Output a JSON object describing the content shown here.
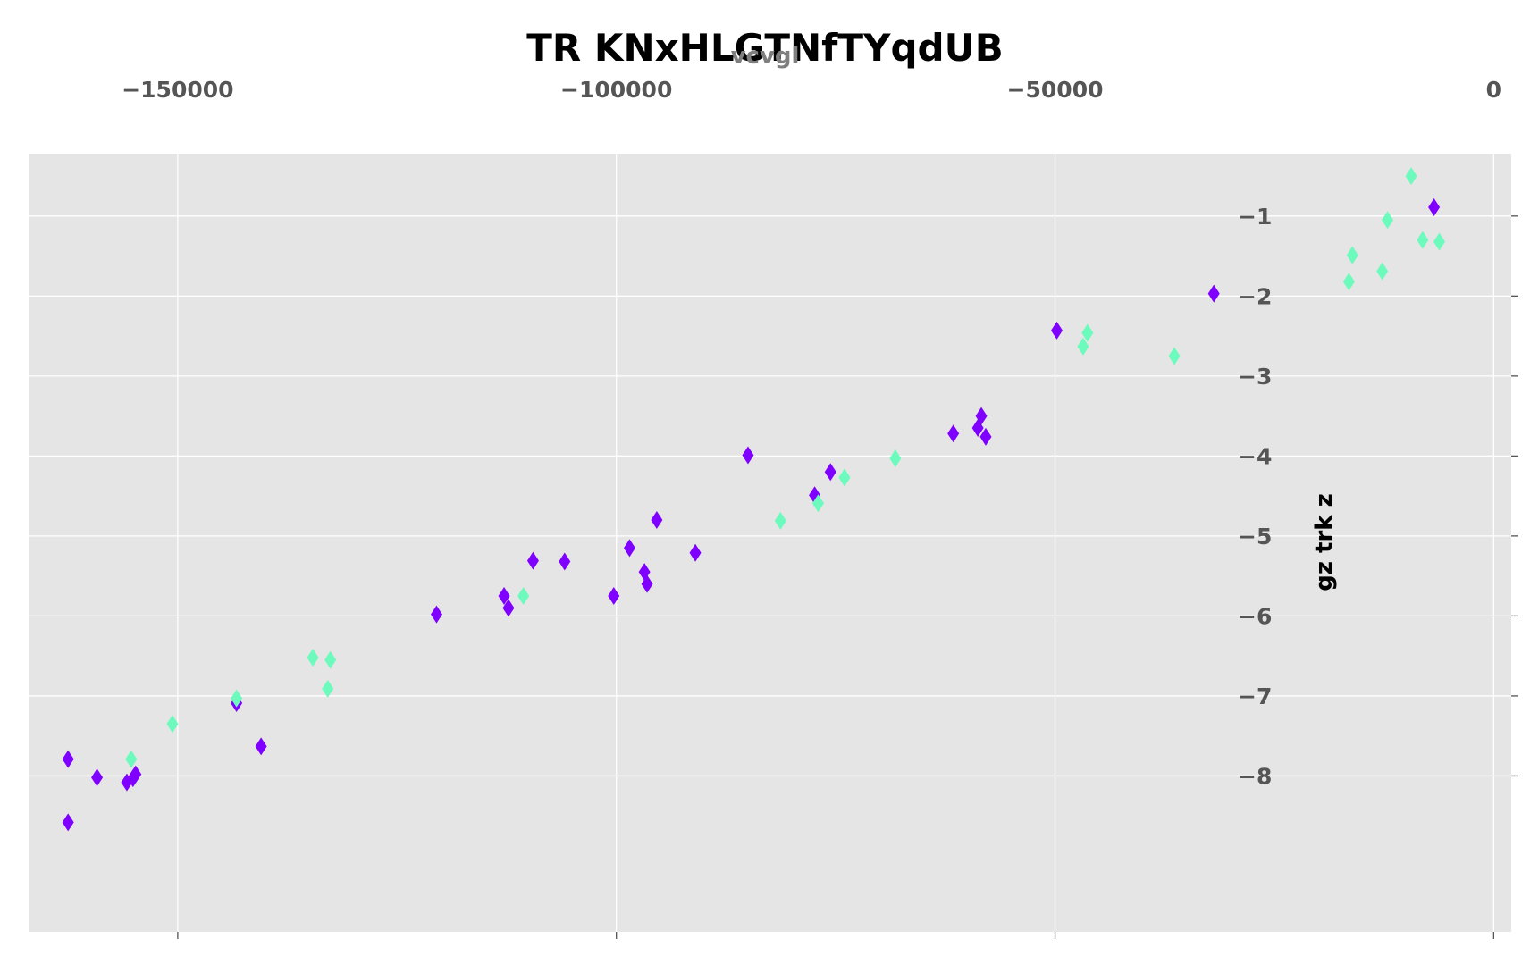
{
  "chart_data": {
    "type": "scatter",
    "title": "TR KNxHLGTNfTYqdUB",
    "xlabel": "vcvgl",
    "ylabel": "gz trk z",
    "xlim": [
      -167000,
      2000
    ],
    "ylim": [
      -9.95,
      -0.22
    ],
    "x_ticks": [
      -150000,
      -100000,
      -50000,
      0
    ],
    "x_tick_labels": [
      "−150000",
      "−100000",
      "−50000",
      "0"
    ],
    "y_ticks": [
      -1,
      -2,
      -3,
      -4,
      -5,
      -6,
      -7,
      -8
    ],
    "y_tick_labels": [
      "−1",
      "−2",
      "−3",
      "−4",
      "−5",
      "−6",
      "−7",
      "−8"
    ],
    "x_axis_position": "top",
    "y_axis_position": "right",
    "grid": true,
    "legend": null,
    "marker": "diamond",
    "background_color": "#e5e5e5",
    "grid_color": "#ffffff",
    "series": [
      {
        "color": "#7f00ff",
        "points": [
          [
            -162500,
            -7.79
          ],
          [
            -162500,
            -8.58
          ],
          [
            -159200,
            -8.02
          ],
          [
            -155800,
            -8.08
          ],
          [
            -155100,
            -8.03
          ],
          [
            -154800,
            -7.98
          ],
          [
            -143300,
            -7.09
          ],
          [
            -140500,
            -7.63
          ],
          [
            -120500,
            -5.98
          ],
          [
            -112800,
            -5.75
          ],
          [
            -112300,
            -5.9
          ],
          [
            -109500,
            -5.31
          ],
          [
            -105900,
            -5.32
          ],
          [
            -100300,
            -5.75
          ],
          [
            -98500,
            -5.15
          ],
          [
            -96800,
            -5.45
          ],
          [
            -96500,
            -5.6
          ],
          [
            -95400,
            -4.8
          ],
          [
            -91000,
            -5.21
          ],
          [
            -85000,
            -3.99
          ],
          [
            -77400,
            -4.49
          ],
          [
            -75600,
            -4.2
          ],
          [
            -61600,
            -3.72
          ],
          [
            -58800,
            -3.65
          ],
          [
            -58400,
            -3.5
          ],
          [
            -57900,
            -3.76
          ],
          [
            -49800,
            -2.43
          ],
          [
            -31900,
            -1.97
          ],
          [
            -6800,
            -0.89
          ]
        ]
      },
      {
        "color": "#6cfbbc",
        "points": [
          [
            -155300,
            -7.79
          ],
          [
            -150600,
            -7.35
          ],
          [
            -143300,
            -7.03
          ],
          [
            -134600,
            -6.52
          ],
          [
            -132900,
            -6.91
          ],
          [
            -132600,
            -6.55
          ],
          [
            -110600,
            -5.75
          ],
          [
            -81300,
            -4.81
          ],
          [
            -77000,
            -4.59
          ],
          [
            -74000,
            -4.27
          ],
          [
            -68200,
            -4.03
          ],
          [
            -46300,
            -2.46
          ],
          [
            -46800,
            -2.63
          ],
          [
            -36400,
            -2.75
          ],
          [
            -16500,
            -1.82
          ],
          [
            -16100,
            -1.49
          ],
          [
            -12700,
            -1.69
          ],
          [
            -12100,
            -1.05
          ],
          [
            -9400,
            -0.5
          ],
          [
            -8100,
            -1.3
          ],
          [
            -6200,
            -1.32
          ]
        ]
      }
    ]
  }
}
